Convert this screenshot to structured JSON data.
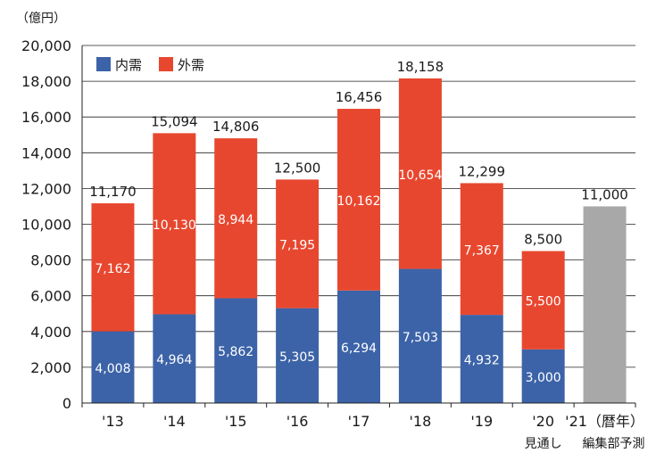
{
  "chart_data": {
    "type": "bar",
    "stacked": true,
    "unit_label": "（億円）",
    "categories": [
      "'13",
      "'14",
      "'15",
      "'16",
      "'17",
      "'18",
      "'19",
      "'20",
      "'21"
    ],
    "xlabel_suffix": "（暦年）",
    "category_notes": [
      {
        "category": "'20",
        "text": "見通し"
      },
      {
        "category": "'21",
        "text": "編集部予測"
      }
    ],
    "series": [
      {
        "name": "内需",
        "color": "#3c63a8",
        "values": [
          4008,
          4964,
          5862,
          5305,
          6294,
          7503,
          4932,
          3000,
          null
        ],
        "labels": [
          "4,008",
          "4,964",
          "5,862",
          "5,305",
          "6,294",
          "7,503",
          "4,932",
          "3,000",
          null
        ]
      },
      {
        "name": "外需",
        "color": "#e8472f",
        "values": [
          7162,
          10130,
          8944,
          7195,
          10162,
          10654,
          7367,
          5500,
          null
        ],
        "labels": [
          "7,162",
          "10,130",
          "8,944",
          "7,195",
          "10,162",
          "10,654",
          "7,367",
          "5,500",
          null
        ]
      },
      {
        "name": "",
        "color": "#a8a8a8",
        "values": [
          null,
          null,
          null,
          null,
          null,
          null,
          null,
          null,
          11000
        ],
        "labels": []
      }
    ],
    "totals": [
      11170,
      15094,
      14806,
      12500,
      16456,
      18158,
      12299,
      8500,
      11000
    ],
    "total_labels": [
      "11,170",
      "15,094",
      "14,806",
      "12,500",
      "16,456",
      "18,158",
      "12,299",
      "8,500",
      "11,000"
    ],
    "ylim": [
      0,
      20000
    ],
    "yticks": [
      0,
      2000,
      4000,
      6000,
      8000,
      10000,
      12000,
      14000,
      16000,
      18000,
      20000
    ],
    "ytick_labels": [
      "0",
      "2,000",
      "4,000",
      "6,000",
      "8,000",
      "10,000",
      "12,000",
      "14,000",
      "16,000",
      "18,000",
      "20,000"
    ],
    "grid": true,
    "legend": {
      "placement": "top-left",
      "entries": [
        "内需",
        "外需"
      ]
    }
  }
}
